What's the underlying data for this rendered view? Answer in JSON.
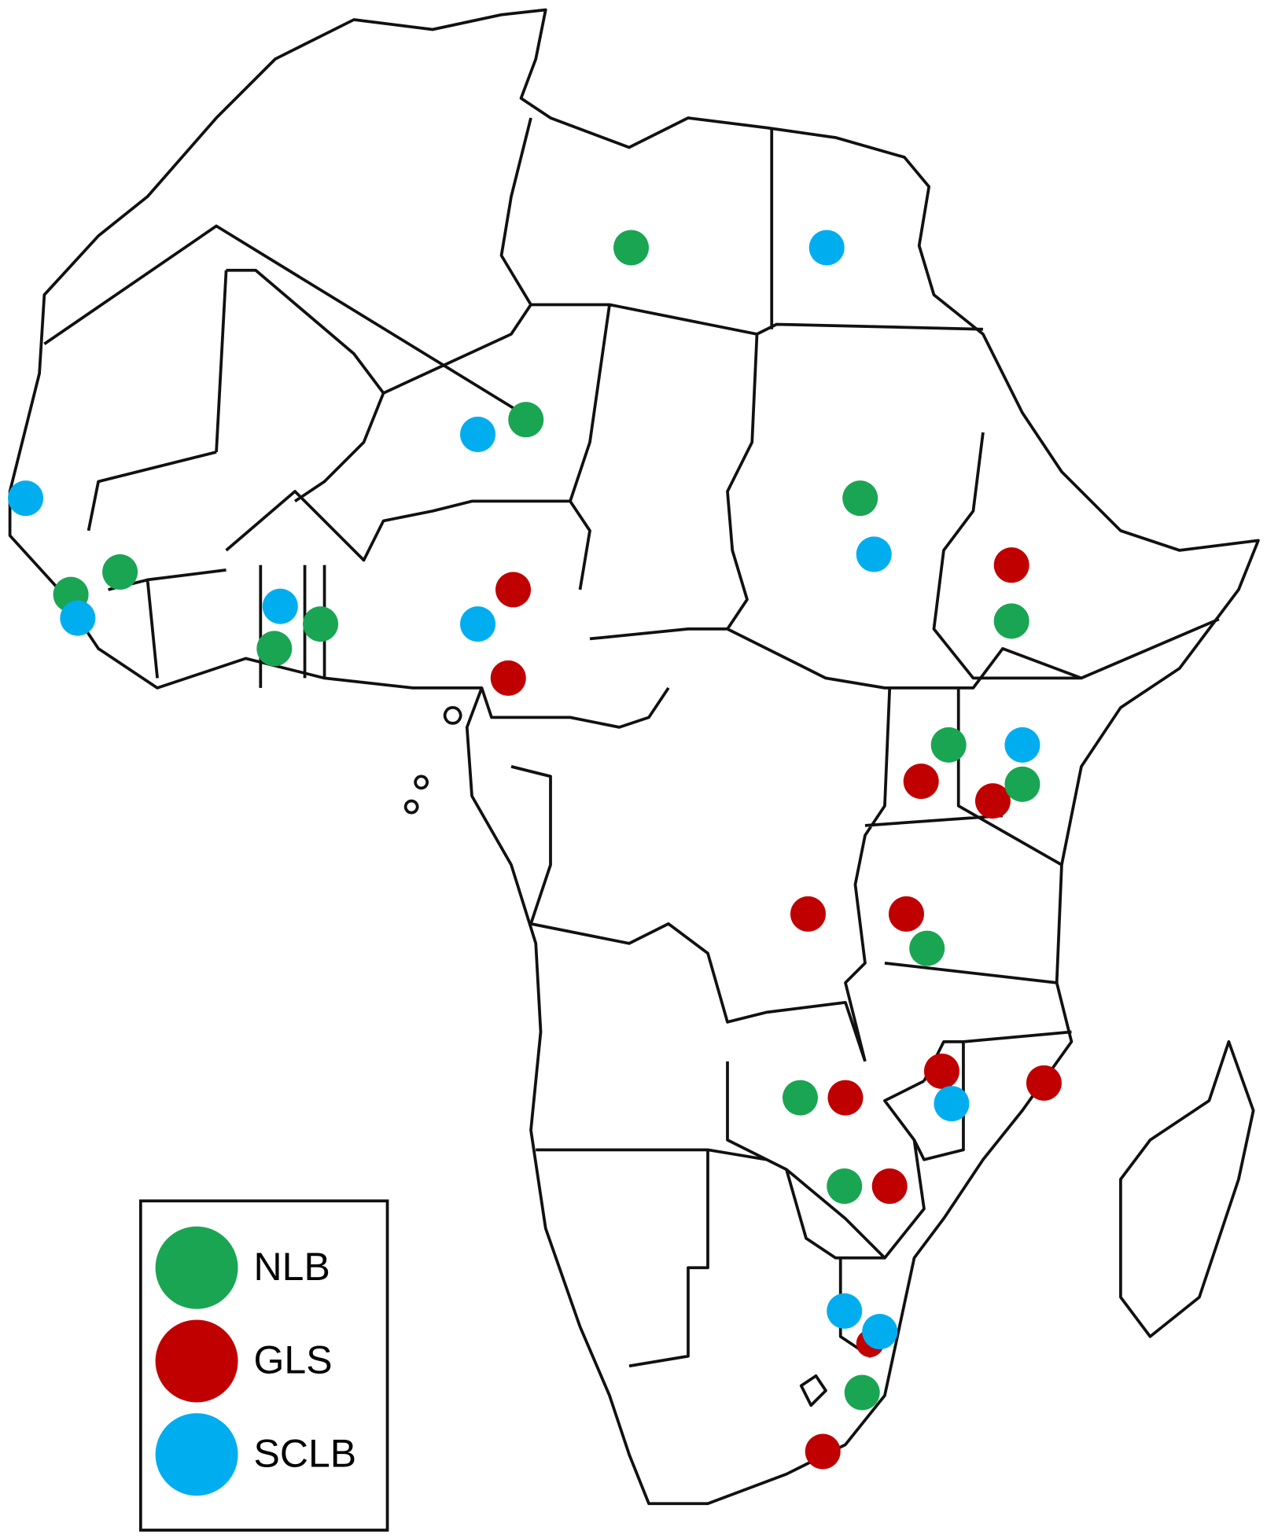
{
  "legend": {
    "items": [
      {
        "name": "NLB",
        "color": "#1aa553"
      },
      {
        "name": "GLS",
        "color": "#c00000"
      },
      {
        "name": "SCLB",
        "color": "#00aeef"
      }
    ]
  }
}
